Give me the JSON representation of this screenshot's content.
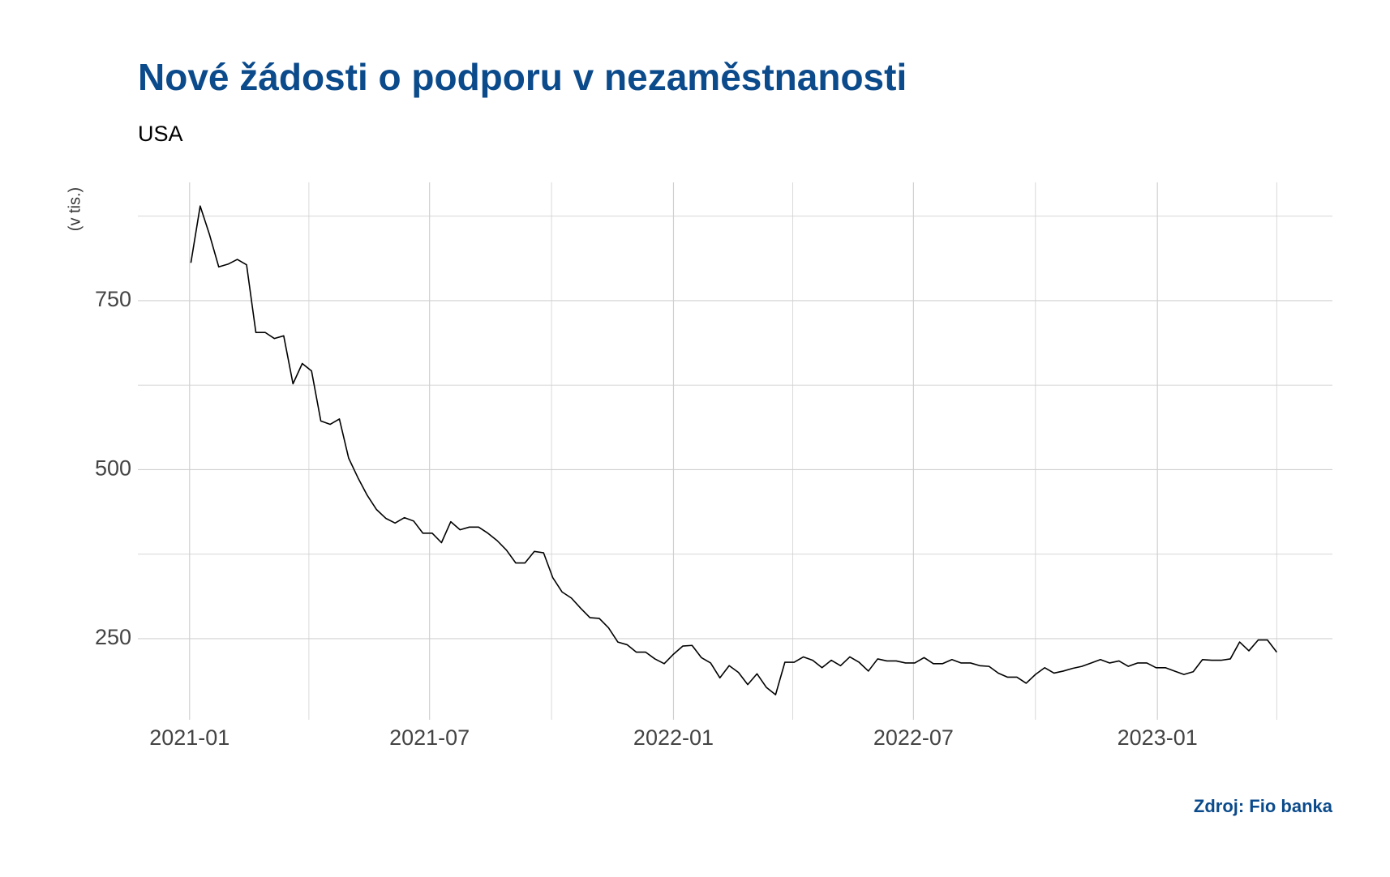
{
  "chart_data": {
    "type": "line",
    "title": "Nové žádosti o podporu v nezaměstnanosti",
    "subtitle": "USA",
    "y_label": "(v tis.)",
    "source": "Zdroj: Fio banka",
    "x": [
      "2021-01-02",
      "2021-01-09",
      "2021-01-16",
      "2021-01-23",
      "2021-01-30",
      "2021-02-06",
      "2021-02-13",
      "2021-02-20",
      "2021-02-27",
      "2021-03-06",
      "2021-03-13",
      "2021-03-20",
      "2021-03-27",
      "2021-04-03",
      "2021-04-10",
      "2021-04-17",
      "2021-04-24",
      "2021-05-01",
      "2021-05-08",
      "2021-05-15",
      "2021-05-22",
      "2021-05-29",
      "2021-06-05",
      "2021-06-12",
      "2021-06-19",
      "2021-06-26",
      "2021-07-03",
      "2021-07-10",
      "2021-07-17",
      "2021-07-24",
      "2021-07-31",
      "2021-08-07",
      "2021-08-14",
      "2021-08-21",
      "2021-08-28",
      "2021-09-04",
      "2021-09-11",
      "2021-09-18",
      "2021-09-25",
      "2021-10-02",
      "2021-10-09",
      "2021-10-16",
      "2021-10-23",
      "2021-10-30",
      "2021-11-06",
      "2021-11-13",
      "2021-11-20",
      "2021-11-27",
      "2021-12-04",
      "2021-12-11",
      "2021-12-18",
      "2021-12-25",
      "2022-01-01",
      "2022-01-08",
      "2022-01-15",
      "2022-01-22",
      "2022-01-29",
      "2022-02-05",
      "2022-02-12",
      "2022-02-19",
      "2022-02-26",
      "2022-03-05",
      "2022-03-12",
      "2022-03-19",
      "2022-03-26",
      "2022-04-02",
      "2022-04-09",
      "2022-04-16",
      "2022-04-23",
      "2022-04-30",
      "2022-05-07",
      "2022-05-14",
      "2022-05-21",
      "2022-05-28",
      "2022-06-04",
      "2022-06-11",
      "2022-06-18",
      "2022-06-25",
      "2022-07-02",
      "2022-07-09",
      "2022-07-16",
      "2022-07-23",
      "2022-07-30",
      "2022-08-06",
      "2022-08-13",
      "2022-08-20",
      "2022-08-27",
      "2022-09-03",
      "2022-09-10",
      "2022-09-17",
      "2022-09-24",
      "2022-10-01",
      "2022-10-08",
      "2022-10-15",
      "2022-10-22",
      "2022-10-29",
      "2022-11-05",
      "2022-11-12",
      "2022-11-19",
      "2022-11-26",
      "2022-12-03",
      "2022-12-10",
      "2022-12-17",
      "2022-12-24",
      "2022-12-31",
      "2023-01-07",
      "2023-01-14",
      "2023-01-21",
      "2023-01-28",
      "2023-02-04",
      "2023-02-11",
      "2023-02-18",
      "2023-02-25",
      "2023-03-04",
      "2023-03-11",
      "2023-03-18",
      "2023-03-25",
      "2023-04-01"
    ],
    "values": [
      806,
      890,
      848,
      800,
      804,
      811,
      803,
      703,
      703,
      694,
      698,
      627,
      657,
      646,
      572,
      567,
      575,
      517,
      488,
      462,
      441,
      428,
      421,
      429,
      424,
      406,
      406,
      392,
      423,
      411,
      415,
      415,
      406,
      395,
      381,
      362,
      362,
      379,
      377,
      340,
      319,
      310,
      295,
      281,
      280,
      266,
      245,
      241,
      230,
      230,
      220,
      213,
      227,
      239,
      240,
      222,
      214,
      192,
      210,
      200,
      182,
      198,
      178,
      167,
      215,
      215,
      223,
      218,
      207,
      218,
      210,
      223,
      215,
      202,
      220,
      217,
      217,
      214,
      214,
      222,
      213,
      213,
      219,
      214,
      214,
      210,
      209,
      199,
      193,
      193,
      184,
      197,
      207,
      199,
      202,
      206,
      209,
      214,
      219,
      214,
      217,
      209,
      214,
      214,
      207,
      207,
      202,
      197,
      201,
      219,
      218,
      218,
      220,
      245,
      232,
      248,
      248,
      230
    ],
    "color": "#000000",
    "xlim": [
      "2020-11-23",
      "2023-05-13"
    ],
    "xticks": [
      {
        "value": "2021-01-01",
        "label": "2021-01"
      },
      {
        "value": "2021-07-01",
        "label": "2021-07"
      },
      {
        "value": "2022-01-01",
        "label": "2022-01"
      },
      {
        "value": "2022-07-01",
        "label": "2022-07"
      },
      {
        "value": "2023-01-01",
        "label": "2023-01"
      }
    ],
    "xminor": [
      "2021-04-01",
      "2021-10-01",
      "2022-04-01",
      "2022-10-01",
      "2023-04-01"
    ],
    "ylim": [
      130,
      925
    ],
    "yticks": [
      250,
      500,
      750
    ],
    "yminor": [
      375,
      625,
      875
    ],
    "grid": true
  }
}
